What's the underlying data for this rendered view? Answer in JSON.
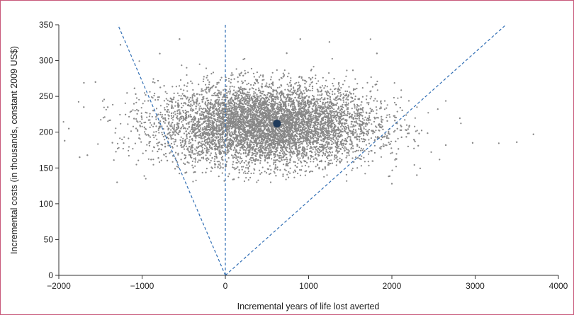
{
  "chart_data": {
    "type": "scatter",
    "title": "",
    "xlabel": "Incremental years of life lost averted",
    "ylabel": "Incremental costs (in thousands, constant 2009 US$)",
    "xlim": [
      -2000,
      4000
    ],
    "ylim": [
      0,
      350
    ],
    "x_ticks": [
      "−2000",
      "−1000",
      "0",
      "1000",
      "2000",
      "3000",
      "4000"
    ],
    "y_ticks": [
      "0",
      "50",
      "100",
      "150",
      "200",
      "250",
      "300",
      "350"
    ],
    "grid": false,
    "legend": "none",
    "point_cloud": {
      "approx_points": 8000,
      "x_center": 500,
      "x_spread": 650,
      "y_center": 210,
      "y_spread": 28,
      "x_range": [
        -1950,
        3700
      ],
      "y_range": [
        128,
        335
      ],
      "color": "#888888"
    },
    "outliers": [
      {
        "x": -1930,
        "y": 188
      },
      {
        "x": -1880,
        "y": 205
      },
      {
        "x": -1750,
        "y": 165
      },
      {
        "x": -1700,
        "y": 235
      },
      {
        "x": -1560,
        "y": 270
      },
      {
        "x": -1300,
        "y": 130
      },
      {
        "x": -1260,
        "y": 322
      },
      {
        "x": 3500,
        "y": 186
      },
      {
        "x": 3700,
        "y": 197
      },
      {
        "x": 2970,
        "y": 185
      },
      {
        "x": 2300,
        "y": 140
      },
      {
        "x": 2000,
        "y": 128
      },
      {
        "x": -550,
        "y": 330
      },
      {
        "x": 900,
        "y": 330
      },
      {
        "x": 1250,
        "y": 326
      },
      {
        "x": 1820,
        "y": 310
      }
    ],
    "mean_point": {
      "x": 620,
      "y": 212,
      "color": "#1f3a5a"
    },
    "reference_lines": [
      {
        "from": [
          0,
          0
        ],
        "to": [
          -1290,
          350
        ],
        "style": "dashed",
        "color": "#2f6db4"
      },
      {
        "from": [
          0,
          0
        ],
        "to": [
          3370,
          350
        ],
        "style": "dashed",
        "color": "#2f6db4"
      },
      {
        "from": [
          0,
          0
        ],
        "to": [
          0,
          350
        ],
        "style": "dashed",
        "color": "#2f6db4"
      }
    ]
  }
}
